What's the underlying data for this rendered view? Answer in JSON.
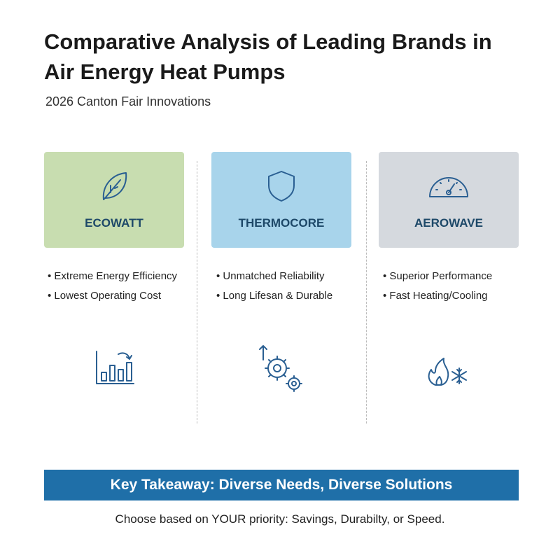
{
  "header": {
    "title": "Comparative Analysis of Leading Brands in Air Energy Heat Pumps",
    "subtitle": "2026 Canton Fair Innovations"
  },
  "brands": [
    {
      "name": "ECOWATT",
      "points": [
        "Extreme Energy Efficiency",
        "Lowest Operating Cost"
      ]
    },
    {
      "name": "THERMOCORE",
      "points": [
        "Unmatched Reliability",
        "Long Lifesan & Durable"
      ]
    },
    {
      "name": "AEROWAVE",
      "points": [
        "Superior Performance",
        "Fast Heating/Cooling"
      ]
    }
  ],
  "takeaway": {
    "title": "Key Takeaway: Diverse Needs, Diverse Solutions",
    "text": "Choose based on YOUR priority: Savings, Durabilty, or Speed."
  }
}
